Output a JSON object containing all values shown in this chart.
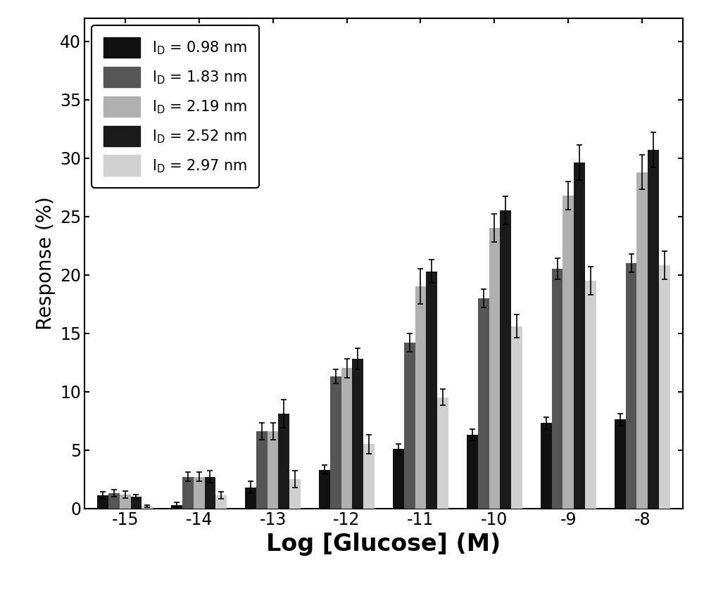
{
  "x_labels": [
    "-15",
    "-14",
    "-13",
    "-12",
    "-11",
    "-10",
    "-9",
    "-8"
  ],
  "series": [
    {
      "label": "l$_\\mathrm{D}$ = 0.98 nm",
      "color": "#111111",
      "values": [
        1.1,
        0.3,
        1.8,
        3.3,
        5.1,
        6.3,
        7.3,
        7.6
      ],
      "errors": [
        0.3,
        0.2,
        0.5,
        0.4,
        0.4,
        0.5,
        0.5,
        0.5
      ]
    },
    {
      "label": "l$_\\mathrm{D}$ = 1.83 nm",
      "color": "#555555",
      "values": [
        1.3,
        2.7,
        6.6,
        11.3,
        14.2,
        18.0,
        20.5,
        21.0
      ],
      "errors": [
        0.3,
        0.4,
        0.7,
        0.6,
        0.8,
        0.8,
        0.9,
        0.8
      ]
    },
    {
      "label": "l$_\\mathrm{D}$ = 2.19 nm",
      "color": "#b0b0b0",
      "values": [
        1.2,
        2.7,
        6.6,
        12.0,
        19.0,
        24.0,
        26.8,
        28.8
      ],
      "errors": [
        0.3,
        0.4,
        0.7,
        0.8,
        1.5,
        1.2,
        1.2,
        1.5
      ]
    },
    {
      "label": "l$_\\mathrm{D}$ = 2.52 nm",
      "color": "#1a1a1a",
      "values": [
        1.0,
        2.7,
        8.1,
        12.8,
        20.3,
        25.5,
        29.6,
        30.7
      ],
      "errors": [
        0.2,
        0.5,
        1.2,
        0.9,
        1.0,
        1.2,
        1.5,
        1.5
      ]
    },
    {
      "label": "l$_\\mathrm{D}$ = 2.97 nm",
      "color": "#d0d0d0",
      "values": [
        0.2,
        1.1,
        2.5,
        5.5,
        9.5,
        15.6,
        19.5,
        20.8
      ],
      "errors": [
        0.1,
        0.3,
        0.7,
        0.8,
        0.7,
        1.0,
        1.2,
        1.2
      ]
    }
  ],
  "ylabel": "Response (%)",
  "xlabel": "Log [Glucose] (M)",
  "ylim": [
    0,
    42
  ],
  "yticks": [
    0,
    5,
    10,
    15,
    20,
    25,
    30,
    35,
    40
  ],
  "axis_fontsize": 20,
  "tick_fontsize": 17,
  "legend_fontsize": 15,
  "bar_width": 0.15,
  "background_color": "#ffffff"
}
